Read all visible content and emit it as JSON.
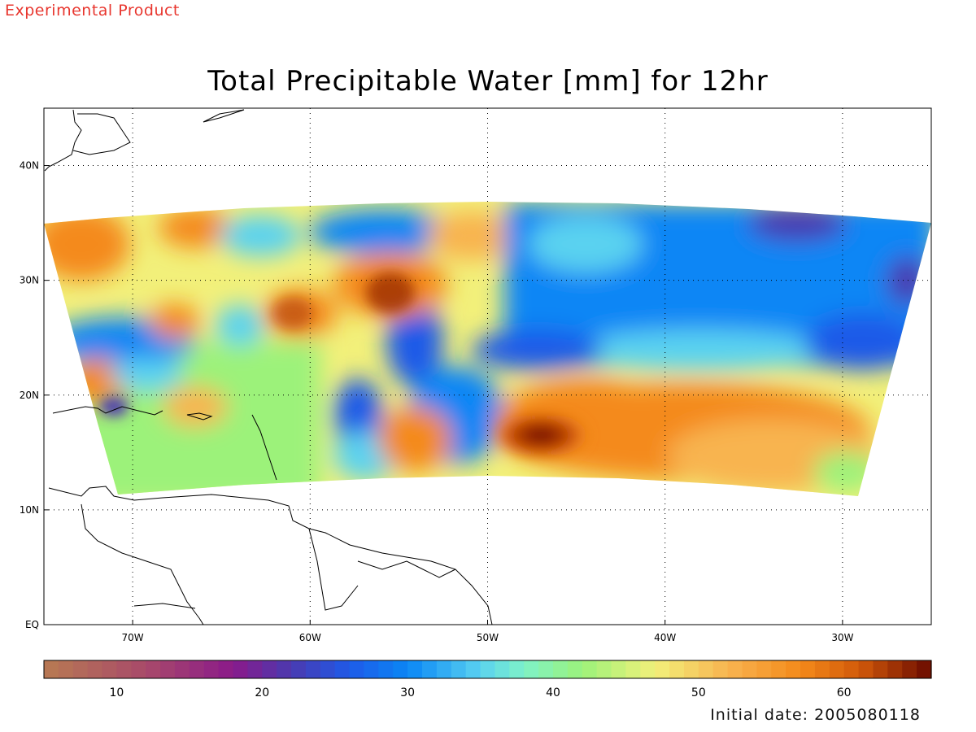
{
  "header": {
    "product_label": "Experimental Product",
    "product_color": "#e8362e",
    "title": "Total Precipitable Water [mm] for 12hr"
  },
  "footer": {
    "initial_date": "Initial date: 2005080118"
  },
  "map": {
    "lon_range": [
      -75,
      -25
    ],
    "lat_range": [
      0,
      45
    ],
    "lon_ticks": [
      {
        "value": -70,
        "label": "70W"
      },
      {
        "value": -60,
        "label": "60W"
      },
      {
        "value": -50,
        "label": "50W"
      },
      {
        "value": -40,
        "label": "40W"
      },
      {
        "value": -30,
        "label": "30W"
      }
    ],
    "lat_ticks": [
      {
        "value": 0,
        "label": "EQ"
      },
      {
        "value": 10,
        "label": "10N"
      },
      {
        "value": 20,
        "label": "20N"
      },
      {
        "value": 30,
        "label": "30N"
      },
      {
        "value": 40,
        "label": "40N"
      }
    ],
    "gridlines": "dotted",
    "features": [
      {
        "name": "large-tropical-cyclone-moisture",
        "lon": -46,
        "lat": 16.5,
        "value_mm": 64
      },
      {
        "name": "dry-slot-near-33N-33W",
        "lon": -33,
        "lat": 35,
        "value_mm": 22
      },
      {
        "name": "moist-band-near-30N-56W",
        "lon": -56,
        "lat": 29,
        "value_mm": 58
      }
    ]
  },
  "colorbar": {
    "range": [
      5,
      66
    ],
    "ticks": [
      10,
      20,
      30,
      40,
      50,
      60
    ],
    "stops": [
      {
        "value": 5,
        "color": "#b87a52"
      },
      {
        "value": 12,
        "color": "#a84a6a"
      },
      {
        "value": 18,
        "color": "#8a1a8a"
      },
      {
        "value": 22,
        "color": "#4a3ab0"
      },
      {
        "value": 26,
        "color": "#1e5ae8"
      },
      {
        "value": 30,
        "color": "#0a86f5"
      },
      {
        "value": 35,
        "color": "#5ad2f0"
      },
      {
        "value": 38,
        "color": "#7ef2c8"
      },
      {
        "value": 42,
        "color": "#9cf27a"
      },
      {
        "value": 47,
        "color": "#f2f07a"
      },
      {
        "value": 52,
        "color": "#f8b450"
      },
      {
        "value": 57,
        "color": "#f48a1a"
      },
      {
        "value": 61,
        "color": "#d25a0a"
      },
      {
        "value": 66,
        "color": "#6a0a00"
      }
    ]
  }
}
